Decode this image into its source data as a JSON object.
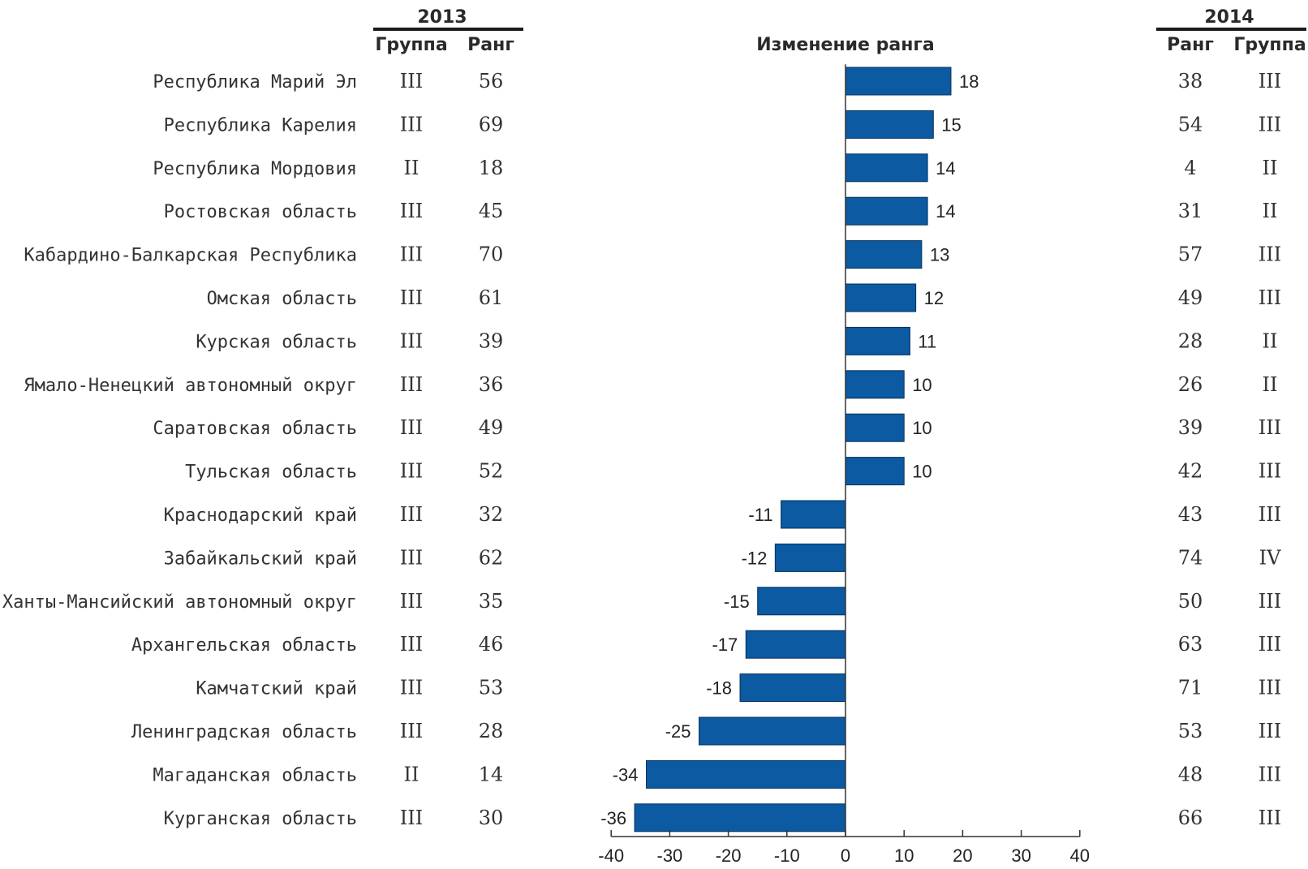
{
  "headers": {
    "year_2013": "2013",
    "year_2014": "2014",
    "group_2013": "Группа",
    "rank_2013": "Ранг",
    "chart_title": "Изменение ранга",
    "rank_2014": "Ранг",
    "group_2014": "Группа"
  },
  "colors": {
    "bar": "#0b5aa2",
    "bar_stroke": "#06305a",
    "axis": "#333333"
  },
  "rows": [
    {
      "region": "Республика Марий Эл",
      "group_2013": "III",
      "rank_2013": "56",
      "change": 18,
      "rank_2014": "38",
      "group_2014": "III"
    },
    {
      "region": "Республика Карелия",
      "group_2013": "III",
      "rank_2013": "69",
      "change": 15,
      "rank_2014": "54",
      "group_2014": "III"
    },
    {
      "region": "Республика Мордовия",
      "group_2013": "II",
      "rank_2013": "18",
      "change": 14,
      "rank_2014": "4",
      "group_2014": "II"
    },
    {
      "region": "Ростовская область",
      "group_2013": "III",
      "rank_2013": "45",
      "change": 14,
      "rank_2014": "31",
      "group_2014": "II"
    },
    {
      "region": "Кабардино-Балкарская Республика",
      "group_2013": "III",
      "rank_2013": "70",
      "change": 13,
      "rank_2014": "57",
      "group_2014": "III"
    },
    {
      "region": "Омская область",
      "group_2013": "III",
      "rank_2013": "61",
      "change": 12,
      "rank_2014": "49",
      "group_2014": "III"
    },
    {
      "region": "Курская область",
      "group_2013": "III",
      "rank_2013": "39",
      "change": 11,
      "rank_2014": "28",
      "group_2014": "II"
    },
    {
      "region": "Ямало-Ненецкий автономный округ",
      "group_2013": "III",
      "rank_2013": "36",
      "change": 10,
      "rank_2014": "26",
      "group_2014": "II"
    },
    {
      "region": "Саратовская область",
      "group_2013": "III",
      "rank_2013": "49",
      "change": 10,
      "rank_2014": "39",
      "group_2014": "III"
    },
    {
      "region": "Тульская область",
      "group_2013": "III",
      "rank_2013": "52",
      "change": 10,
      "rank_2014": "42",
      "group_2014": "III"
    },
    {
      "region": "Краснодарский край",
      "group_2013": "III",
      "rank_2013": "32",
      "change": -11,
      "rank_2014": "43",
      "group_2014": "III"
    },
    {
      "region": "Забайкальский край",
      "group_2013": "III",
      "rank_2013": "62",
      "change": -12,
      "rank_2014": "74",
      "group_2014": "IV"
    },
    {
      "region": "Ханты-Мансийский автономный округ",
      "group_2013": "III",
      "rank_2013": "35",
      "change": -15,
      "rank_2014": "50",
      "group_2014": "III"
    },
    {
      "region": "Архангельская область",
      "group_2013": "III",
      "rank_2013": "46",
      "change": -17,
      "rank_2014": "63",
      "group_2014": "III"
    },
    {
      "region": "Камчатский край",
      "group_2013": "III",
      "rank_2013": "53",
      "change": -18,
      "rank_2014": "71",
      "group_2014": "III"
    },
    {
      "region": "Ленинградская область",
      "group_2013": "III",
      "rank_2013": "28",
      "change": -25,
      "rank_2014": "53",
      "group_2014": "III"
    },
    {
      "region": "Магаданская область",
      "group_2013": "II",
      "rank_2013": "14",
      "change": -34,
      "rank_2014": "48",
      "group_2014": "III"
    },
    {
      "region": "Курганская область",
      "group_2013": "III",
      "rank_2013": "30",
      "change": -36,
      "rank_2014": "66",
      "group_2014": "III"
    }
  ],
  "chart_data": {
    "type": "bar",
    "orientation": "horizontal",
    "title": "Изменение ранга",
    "categories": [
      "Республика Марий Эл",
      "Республика Карелия",
      "Республика Мордовия",
      "Ростовская область",
      "Кабардино-Балкарская Республика",
      "Омская область",
      "Курская область",
      "Ямало-Ненецкий автономный округ",
      "Саратовская область",
      "Тульская область",
      "Краснодарский край",
      "Забайкальский край",
      "Ханты-Мансийский автономный округ",
      "Архангельская область",
      "Камчатский край",
      "Ленинградская область",
      "Магаданская область",
      "Курганская область"
    ],
    "values": [
      18,
      15,
      14,
      14,
      13,
      12,
      11,
      10,
      10,
      10,
      -11,
      -12,
      -15,
      -17,
      -18,
      -25,
      -34,
      -36
    ],
    "xlim": [
      -40,
      40
    ],
    "xticks": [
      -40,
      -30,
      -20,
      -10,
      0,
      10,
      20,
      30,
      40
    ],
    "grid": false,
    "legend": "none"
  }
}
